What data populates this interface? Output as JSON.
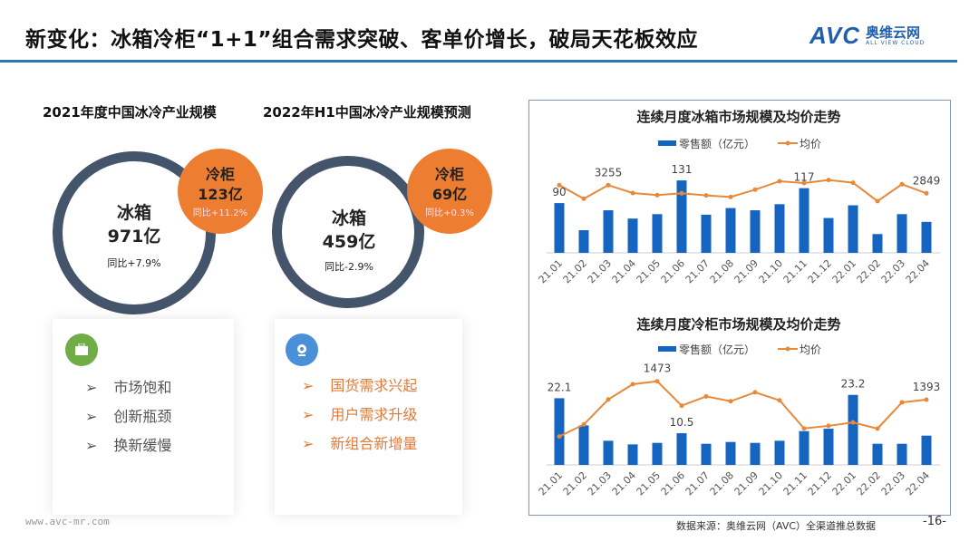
{
  "header": {
    "title": "新变化：冰箱冷柜“1+1”组合需求突破、客单价增长，破局天花板效应",
    "logo_mark": "AVC",
    "logo_cn": "奥维云网",
    "logo_en": "ALL VIEW CLOUD"
  },
  "left": {
    "y2021": {
      "title": "2021年度中国冰冷产业规模",
      "fridge_label": "冰箱",
      "fridge_value": "971亿",
      "fridge_yoy": "同比+7.9%",
      "freezer_label": "冷柜",
      "freezer_value": "123亿",
      "freezer_yoy": "同比+11.2%"
    },
    "y2022": {
      "title": "2022年H1中国冰冷产业规模预测",
      "fridge_label": "冰箱",
      "fridge_value": "459亿",
      "fridge_yoy": "同比-2.9%",
      "freezer_label": "冷柜",
      "freezer_value": "69亿",
      "freezer_yoy": "同比+0.3%"
    },
    "card1": {
      "icon": "briefcase-icon",
      "bullets": [
        "市场饱和",
        "创新瓶颈",
        "换新缓慢"
      ]
    },
    "card2": {
      "icon": "target-icon",
      "bullets": [
        "国货需求兴起",
        "用户需求升级",
        "新组合新增量"
      ]
    },
    "bullet_glyph": "➢"
  },
  "footer": {
    "url": "www.avc-mr.com",
    "source": "数据来源：奥维云网（AVC）全渠道推总数据",
    "page": "-16-"
  },
  "colors": {
    "bar": "#1565c0",
    "line": "#e8893a",
    "ring": "#44546a",
    "orange": "#ed7d31",
    "header_line": "#2e75b6"
  },
  "chart_data": [
    {
      "type": "bar+line",
      "title": "连续月度冰箱市场规模及均价走势",
      "categories": [
        "21.01",
        "21.02",
        "21.03",
        "21.04",
        "21.05",
        "21.06",
        "21.07",
        "21.08",
        "21.09",
        "21.10",
        "21.11",
        "21.12",
        "22.01",
        "22.02",
        "22.03",
        "22.04"
      ],
      "legend": [
        "零售额（亿元）",
        "均价"
      ],
      "series": [
        {
          "name": "零售额（亿元）",
          "type": "bar",
          "values": [
            90,
            41,
            77,
            62,
            70,
            131,
            69,
            81,
            77,
            88,
            117,
            63,
            86,
            34,
            70,
            56
          ]
        },
        {
          "name": "均价",
          "type": "line",
          "values": [
            3255,
            2578,
            3255,
            2864,
            2759,
            2849,
            2744,
            2668,
            3029,
            3451,
            3360,
            3511,
            3375,
            2458,
            3300,
            2849
          ]
        }
      ],
      "labels": [
        {
          "series": 0,
          "index": 0,
          "text": "90"
        },
        {
          "series": 1,
          "index": 2,
          "text": "3255"
        },
        {
          "series": 0,
          "index": 5,
          "text": "131"
        },
        {
          "series": 0,
          "index": 10,
          "text": "117"
        },
        {
          "series": 1,
          "index": 15,
          "text": "2849"
        }
      ]
    },
    {
      "type": "bar+line",
      "title": "连续月度冷柜市场规模及均价走势",
      "categories": [
        "21.01",
        "21.02",
        "21.03",
        "21.04",
        "21.05",
        "21.06",
        "21.07",
        "21.08",
        "21.09",
        "21.10",
        "21.11",
        "21.12",
        "22.01",
        "22.02",
        "22.03",
        "22.04"
      ],
      "legend": [
        "零售额（亿元）",
        "均价"
      ],
      "series": [
        {
          "name": "零售额（亿元）",
          "type": "bar",
          "values": [
            22.1,
            13.1,
            8.0,
            6.8,
            7.3,
            10.5,
            7.0,
            7.6,
            7.3,
            8.0,
            11.2,
            12.0,
            23.2,
            7.0,
            7.0,
            9.7
          ]
        },
        {
          "name": "均价",
          "type": "line",
          "values": [
            1233,
            1285,
            1394,
            1460,
            1473,
            1367,
            1407,
            1386,
            1425,
            1390,
            1268,
            1279,
            1294,
            1267,
            1381,
            1393
          ]
        }
      ],
      "labels": [
        {
          "series": 0,
          "index": 0,
          "text": "22.1"
        },
        {
          "series": 1,
          "index": 4,
          "text": "1473"
        },
        {
          "series": 0,
          "index": 5,
          "text": "10.5"
        },
        {
          "series": 0,
          "index": 12,
          "text": "23.2"
        },
        {
          "series": 1,
          "index": 15,
          "text": "1393"
        }
      ]
    }
  ]
}
